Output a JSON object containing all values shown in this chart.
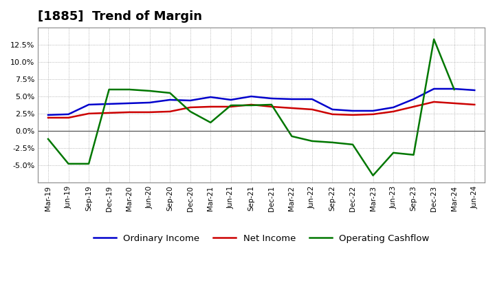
{
  "title": "[1885]  Trend of Margin",
  "x_labels": [
    "Mar-19",
    "Jun-19",
    "Sep-19",
    "Dec-19",
    "Mar-20",
    "Jun-20",
    "Sep-20",
    "Dec-20",
    "Mar-21",
    "Jun-21",
    "Sep-21",
    "Dec-21",
    "Mar-22",
    "Jun-22",
    "Sep-22",
    "Dec-22",
    "Mar-23",
    "Jun-23",
    "Sep-23",
    "Dec-23",
    "Mar-24",
    "Jun-24"
  ],
  "ordinary_income": [
    2.3,
    2.4,
    3.8,
    3.9,
    4.0,
    4.1,
    4.5,
    4.4,
    4.9,
    4.5,
    5.0,
    4.7,
    4.6,
    4.6,
    3.1,
    2.9,
    2.9,
    3.4,
    4.6,
    6.1,
    6.1,
    5.9
  ],
  "net_income": [
    1.9,
    1.9,
    2.5,
    2.6,
    2.7,
    2.7,
    2.8,
    3.4,
    3.5,
    3.5,
    3.8,
    3.5,
    3.3,
    3.1,
    2.4,
    2.3,
    2.4,
    2.8,
    3.5,
    4.2,
    4.0,
    3.8
  ],
  "operating_cashflow": [
    -1.2,
    -4.8,
    -4.8,
    6.0,
    6.0,
    5.8,
    5.5,
    2.8,
    1.2,
    3.7,
    3.7,
    3.8,
    -0.8,
    -1.5,
    -1.7,
    -2.0,
    -6.5,
    -3.2,
    -3.5,
    13.3,
    6.0,
    null
  ],
  "ordinary_income_color": "#0000CC",
  "net_income_color": "#CC0000",
  "operating_cashflow_color": "#007700",
  "background_color": "#ffffff",
  "grid_color": "#999999",
  "ylim": [
    -7.5,
    15.0
  ],
  "yticks": [
    -5.0,
    -2.5,
    0.0,
    2.5,
    5.0,
    7.5,
    10.0,
    12.5
  ],
  "title_fontsize": 13,
  "legend_labels": [
    "Ordinary Income",
    "Net Income",
    "Operating Cashflow"
  ]
}
